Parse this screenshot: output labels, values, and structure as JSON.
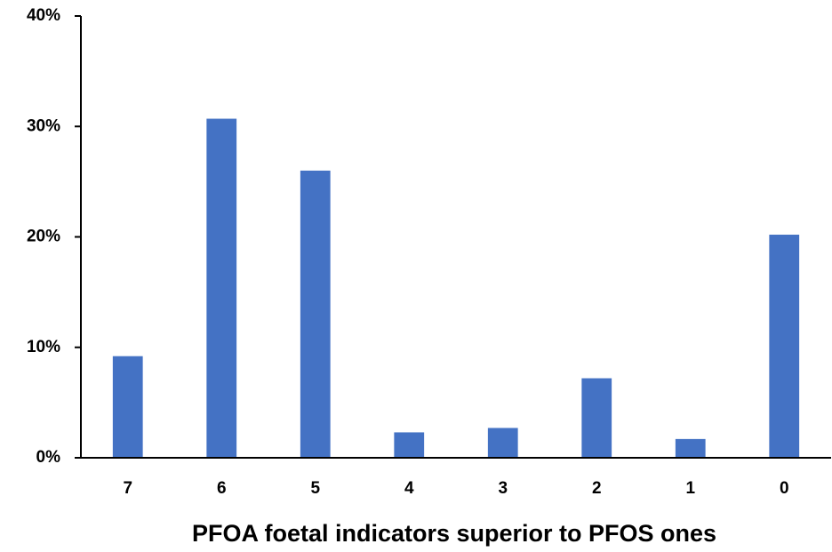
{
  "chart_data": {
    "type": "bar",
    "x_label": "PFOA foetal indicators superior to PFOS ones",
    "categories": [
      "7",
      "6",
      "5",
      "4",
      "3",
      "2",
      "1",
      "0"
    ],
    "values": [
      9.2,
      30.7,
      26.0,
      2.3,
      2.7,
      7.2,
      1.7,
      20.2
    ],
    "color": "#4472c4",
    "ylim": [
      0,
      40
    ],
    "yticks": [
      {
        "value": 0,
        "label": "0%"
      },
      {
        "value": 10,
        "label": "10%"
      },
      {
        "value": 20,
        "label": "20%"
      },
      {
        "value": 30,
        "label": "30%"
      },
      {
        "value": 40,
        "label": "40%"
      }
    ],
    "grid": false
  }
}
